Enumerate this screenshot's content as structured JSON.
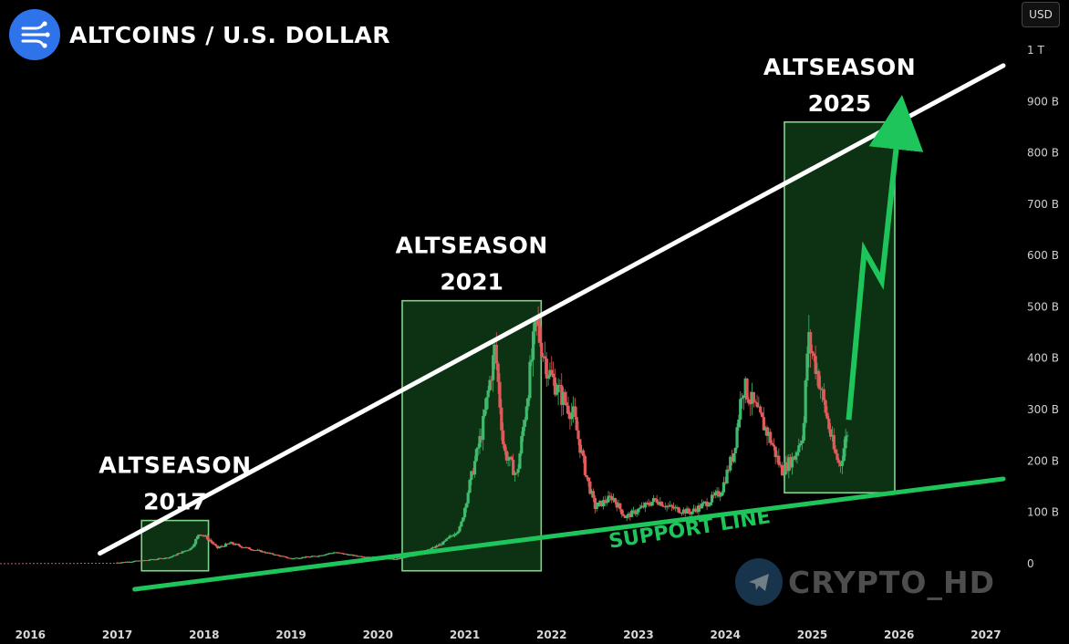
{
  "header": {
    "title": "ALTCOINS / U.S. DOLLAR",
    "logo_icon": "altcoin-logo-icon",
    "currency_button": "USD"
  },
  "watermark": {
    "text": "CRYPTO_HD",
    "icon": "telegram-icon"
  },
  "colors": {
    "background": "#000000",
    "up_candle": "#3fb96d",
    "down_candle": "#e05a5a",
    "resistance_line": "#ffffff",
    "support_line": "#1ec55a",
    "projection_arrow": "#1ec55a",
    "highlight_box_fill": "#0e3a16",
    "highlight_box_stroke": "#7fd487"
  },
  "chart_data": {
    "type": "candlestick",
    "title": "ALTCOINS / U.S. DOLLAR",
    "xlabel": "",
    "ylabel": "",
    "y_unit": "USD",
    "xlim": [
      2015.65,
      2027.2
    ],
    "ylim": [
      -18,
      1000
    ],
    "x_ticks": [
      "2016",
      "2017",
      "2018",
      "2019",
      "2020",
      "2021",
      "2022",
      "2023",
      "2024",
      "2025",
      "2026",
      "2027"
    ],
    "y_ticks": [
      {
        "value": 1000,
        "label": "1 T"
      },
      {
        "value": 900,
        "label": "900 B"
      },
      {
        "value": 800,
        "label": "800 B"
      },
      {
        "value": 700,
        "label": "700 B"
      },
      {
        "value": 600,
        "label": "600 B"
      },
      {
        "value": 500,
        "label": "500 B"
      },
      {
        "value": 400,
        "label": "400 B"
      },
      {
        "value": 300,
        "label": "300 B"
      },
      {
        "value": 200,
        "label": "200 B"
      },
      {
        "value": 100,
        "label": "100 B"
      },
      {
        "value": 0,
        "label": "0"
      }
    ],
    "series": [
      {
        "name": "",
        "price_path": [
          [
            2015.65,
            0
          ],
          [
            2016.5,
            1
          ],
          [
            2017.0,
            2
          ],
          [
            2017.3,
            6
          ],
          [
            2017.6,
            12
          ],
          [
            2017.85,
            30
          ],
          [
            2017.95,
            60
          ],
          [
            2018.05,
            48
          ],
          [
            2018.15,
            30
          ],
          [
            2018.3,
            40
          ],
          [
            2018.5,
            30
          ],
          [
            2018.75,
            20
          ],
          [
            2019.0,
            10
          ],
          [
            2019.3,
            15
          ],
          [
            2019.5,
            22
          ],
          [
            2019.75,
            15
          ],
          [
            2020.0,
            12
          ],
          [
            2020.2,
            8
          ],
          [
            2020.5,
            20
          ],
          [
            2020.75,
            40
          ],
          [
            2020.95,
            70
          ],
          [
            2021.05,
            150
          ],
          [
            2021.2,
            260
          ],
          [
            2021.35,
            420
          ],
          [
            2021.45,
            220
          ],
          [
            2021.6,
            170
          ],
          [
            2021.7,
            300
          ],
          [
            2021.82,
            470
          ],
          [
            2021.95,
            380
          ],
          [
            2022.1,
            330
          ],
          [
            2022.25,
            290
          ],
          [
            2022.4,
            170
          ],
          [
            2022.5,
            110
          ],
          [
            2022.7,
            130
          ],
          [
            2022.85,
            90
          ],
          [
            2023.0,
            105
          ],
          [
            2023.2,
            125
          ],
          [
            2023.35,
            110
          ],
          [
            2023.6,
            100
          ],
          [
            2023.8,
            120
          ],
          [
            2023.95,
            140
          ],
          [
            2024.1,
            220
          ],
          [
            2024.2,
            350
          ],
          [
            2024.35,
            300
          ],
          [
            2024.5,
            250
          ],
          [
            2024.65,
            180
          ],
          [
            2024.8,
            210
          ],
          [
            2024.9,
            260
          ],
          [
            2024.95,
            440
          ],
          [
            2025.05,
            380
          ],
          [
            2025.15,
            300
          ],
          [
            2025.25,
            220
          ],
          [
            2025.32,
            190
          ],
          [
            2025.42,
            270
          ]
        ]
      }
    ],
    "highlight_boxes": [
      {
        "label_line1": "ALTSEASON",
        "label_line2": "2017",
        "x": [
          2017.28,
          2018.05
        ],
        "y": [
          -14,
          84
        ]
      },
      {
        "label_line1": "ALTSEASON",
        "label_line2": "2021",
        "x": [
          2020.28,
          2021.88
        ],
        "y": [
          -14,
          512
        ]
      },
      {
        "label_line1": "ALTSEASON",
        "label_line2": "2025",
        "x": [
          2024.68,
          2025.95
        ],
        "y": [
          138,
          860
        ]
      }
    ],
    "trend_lines": [
      {
        "name": "resistance",
        "label": "",
        "from": [
          2016.8,
          20
        ],
        "to": [
          2027.2,
          970
        ]
      },
      {
        "name": "support",
        "label": "SUPPORT LINE",
        "from": [
          2017.2,
          -50
        ],
        "to": [
          2027.2,
          165
        ]
      }
    ],
    "projection": [
      [
        2025.42,
        280
      ],
      [
        2025.6,
        610
      ],
      [
        2025.8,
        550
      ],
      [
        2026.0,
        860
      ]
    ],
    "annotations": [
      {
        "text": "SUPPORT LINE",
        "x": 2023.6,
        "y": 55
      }
    ]
  }
}
